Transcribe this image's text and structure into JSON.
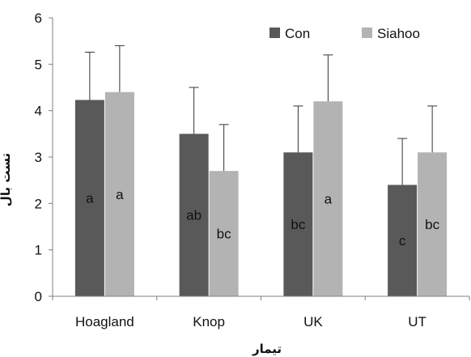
{
  "chart_data": {
    "type": "bar",
    "title": "",
    "xlabel": "تیمار",
    "ylabel": "تست بال",
    "ylim": [
      0,
      6
    ],
    "yticks": [
      0,
      1,
      2,
      3,
      4,
      5,
      6
    ],
    "grid": false,
    "legend_position": "top-right",
    "categories": [
      "Hoagland",
      "Knop",
      "UK",
      "UT"
    ],
    "series": [
      {
        "name": "Con",
        "color": "#595959",
        "values": [
          4.23,
          3.5,
          3.1,
          2.4
        ],
        "errors": [
          1.03,
          1.0,
          1.0,
          1.0
        ],
        "letters": [
          "a",
          "ab",
          "bc",
          "c"
        ]
      },
      {
        "name": "Siahoo",
        "color": "#b3b3b3",
        "values": [
          4.4,
          2.7,
          4.2,
          3.1
        ],
        "errors": [
          1.0,
          1.0,
          1.0,
          1.0
        ],
        "letters": [
          "a",
          "bc",
          "a",
          "bc"
        ]
      }
    ]
  }
}
